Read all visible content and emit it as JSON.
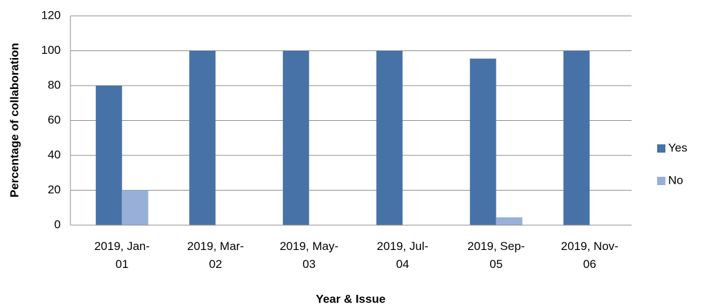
{
  "chart_data": {
    "type": "bar",
    "x_label": "Year & Issue",
    "y_label": "Percentage of collaboration",
    "categories": [
      "2019, Jan-01",
      "2019, Mar-02",
      "2019, May-03",
      "2019, Jul-04",
      "2019, Sep-05",
      "2019, Nov-06"
    ],
    "series": [
      {
        "name": "Yes",
        "color": "#4672a8",
        "values": [
          80,
          100,
          100,
          100,
          95.5,
          100
        ]
      },
      {
        "name": "No",
        "color": "#98b0d8",
        "values": [
          20,
          0,
          0,
          0,
          4.5,
          0
        ]
      }
    ],
    "ylim": [
      0,
      120
    ],
    "yticks": [
      0,
      20,
      40,
      60,
      80,
      100,
      120
    ],
    "grid": true,
    "legend": "right"
  }
}
